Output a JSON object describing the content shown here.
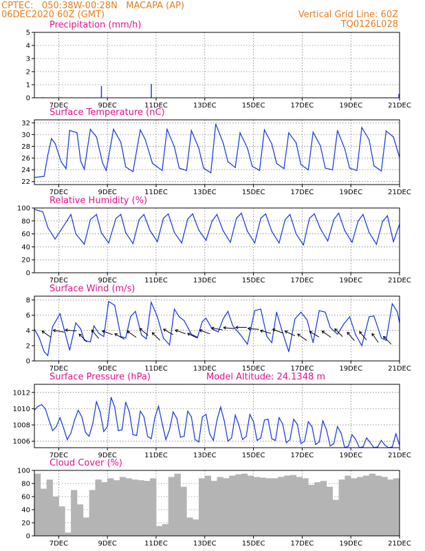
{
  "header": {
    "line1_left": "CPTEC:   050:38W-00:28N   MACAPA (AP)",
    "line2_left": "06DEC2020 60Z (GMT)",
    "line1_right": "Vertical Grid Line: 60Z",
    "line2_right": "TQ0126L028"
  },
  "colors": {
    "header": "#e87c1e",
    "title": "#e0128c",
    "line": "#1f3fe0",
    "bar": "#b4b4b4",
    "arrow": "#000000"
  },
  "x_axis": {
    "labels": [
      "7DEC",
      "9DEC",
      "11DEC",
      "13DEC",
      "15DEC",
      "17DEC",
      "19DEC",
      "21DEC"
    ],
    "x_values": [
      1,
      3,
      5,
      7,
      9,
      11,
      13,
      15
    ],
    "range": [
      0,
      15
    ]
  },
  "chart_data": [
    {
      "type": "bar",
      "title": "Precipitation (mm/h)",
      "ylim": [
        0,
        5
      ],
      "yticks": [
        0,
        1,
        2,
        3,
        4,
        5
      ],
      "x": [
        0.35,
        2.75,
        4.8,
        14.97
      ],
      "values": [
        0.05,
        0.9,
        1.05,
        0.3
      ]
    },
    {
      "type": "line",
      "title": "Surface Temperature (nC)",
      "ylim": [
        21.5,
        32.5
      ],
      "yticks": [
        22,
        24,
        26,
        28,
        30,
        32
      ],
      "x": [
        0,
        0.4,
        0.55,
        0.7,
        0.85,
        1.1,
        1.3,
        1.45,
        1.75,
        1.9,
        2.05,
        2.3,
        2.55,
        2.8,
        2.95,
        3.25,
        3.55,
        3.75,
        4.05,
        4.35,
        4.55,
        4.85,
        5.25,
        5.45,
        5.75,
        5.95,
        6.25,
        6.45,
        6.75,
        6.95,
        7.25,
        7.45,
        7.75,
        7.95,
        8.25,
        8.45,
        8.75,
        8.95,
        9.25,
        9.45,
        9.75,
        9.95,
        10.25,
        10.45,
        10.75,
        10.95,
        11.25,
        11.45,
        11.75,
        11.95,
        12.25,
        12.45,
        12.75,
        12.95,
        13.25,
        13.45,
        13.75,
        13.95,
        14.25,
        14.45,
        14.75,
        15
      ],
      "values": [
        22.7,
        22.9,
        26.5,
        29.3,
        28.5,
        25.4,
        24.2,
        30.7,
        30.3,
        25.5,
        24.1,
        30.9,
        29.6,
        25.2,
        23.9,
        30.9,
        28.7,
        24.5,
        23.7,
        30.8,
        29.2,
        25.1,
        23.9,
        30.9,
        27.9,
        24.3,
        23.9,
        30.7,
        27.7,
        24.3,
        23.5,
        31.8,
        28.6,
        25.4,
        24.4,
        30.3,
        27.7,
        24.6,
        23.9,
        30.8,
        28.4,
        25.1,
        24.2,
        30.3,
        28.6,
        24.9,
        24.0,
        30.4,
        28.1,
        24.3,
        24.0,
        30.7,
        27.6,
        24.3,
        23.9,
        31.2,
        29.1,
        24.7,
        23.8,
        30.6,
        29.6,
        26.1
      ]
    },
    {
      "type": "line",
      "title": "Relative Humidity (%)",
      "ylim": [
        0,
        100
      ],
      "yticks": [
        0,
        20,
        40,
        60,
        80,
        100
      ],
      "x": [
        0,
        0.35,
        0.55,
        0.85,
        1.3,
        1.5,
        1.7,
        2.05,
        2.3,
        2.55,
        2.75,
        3.05,
        3.35,
        3.55,
        3.75,
        4.05,
        4.3,
        4.5,
        4.75,
        5.05,
        5.3,
        5.5,
        5.75,
        6.05,
        6.3,
        6.5,
        6.75,
        7.05,
        7.3,
        7.5,
        7.75,
        8.05,
        8.3,
        8.5,
        8.75,
        9.05,
        9.3,
        9.5,
        9.75,
        10.05,
        10.3,
        10.5,
        10.75,
        11.05,
        11.3,
        11.5,
        11.75,
        12.05,
        12.3,
        12.5,
        12.75,
        13.05,
        13.3,
        13.5,
        13.75,
        14.05,
        14.3,
        14.5,
        14.75,
        15
      ],
      "values": [
        98,
        94,
        70,
        52,
        78,
        90,
        60,
        44,
        82,
        90,
        62,
        46,
        84,
        90,
        62,
        45,
        82,
        90,
        65,
        48,
        84,
        91,
        62,
        46,
        83,
        91,
        66,
        50,
        80,
        90,
        65,
        47,
        84,
        92,
        64,
        46,
        84,
        91,
        64,
        46,
        82,
        90,
        60,
        43,
        84,
        91,
        68,
        49,
        82,
        92,
        65,
        47,
        80,
        90,
        62,
        44,
        79,
        88,
        48,
        75
      ]
    },
    {
      "type": "line",
      "title": "Surface Wind (m/s)",
      "ylim": [
        0,
        8.5
      ],
      "yticks": [
        0,
        2,
        4,
        6,
        8
      ],
      "x": [
        0,
        0.2,
        0.4,
        0.55,
        0.75,
        1.05,
        1.3,
        1.45,
        1.7,
        1.9,
        2.05,
        2.3,
        2.45,
        2.65,
        2.85,
        3.05,
        3.3,
        3.55,
        3.75,
        3.95,
        4.15,
        4.4,
        4.6,
        4.8,
        5.05,
        5.3,
        5.55,
        5.75,
        5.95,
        6.15,
        6.45,
        6.7,
        6.9,
        7.05,
        7.3,
        7.55,
        7.75,
        7.95,
        8.15,
        8.45,
        8.75,
        9.05,
        9.3,
        9.55,
        9.75,
        9.95,
        10.15,
        10.45,
        10.7,
        10.95,
        11.2,
        11.45,
        11.7,
        11.95,
        12.15,
        12.45,
        12.7,
        12.95,
        13.2,
        13.45,
        13.75,
        13.95,
        14.25,
        14.45,
        14.7,
        14.9,
        15
      ],
      "values": [
        4.2,
        3.0,
        1.2,
        0.7,
        4.5,
        6.2,
        3.2,
        1.4,
        5.0,
        4.2,
        2.7,
        2.5,
        4.6,
        3.6,
        3.2,
        7.8,
        7.3,
        3.2,
        3.0,
        5.8,
        6.5,
        3.4,
        2.9,
        7.7,
        5.8,
        3.0,
        2.1,
        6.8,
        5.8,
        5.3,
        3.5,
        3.1,
        5.2,
        5.6,
        4.2,
        3.8,
        5.5,
        6.5,
        4.6,
        3.5,
        2.2,
        6.6,
        6.8,
        3.2,
        2.4,
        6.4,
        4.2,
        1.2,
        5.5,
        6.4,
        5.4,
        2.4,
        6.6,
        6.4,
        4.4,
        3.5,
        4.8,
        5.8,
        3.4,
        2.0,
        5.8,
        5.9,
        3.0,
        2.7,
        7.5,
        6.5,
        5.0
      ],
      "arrows_x": [
        0.5,
        1.0,
        1.5,
        2.0,
        2.5,
        3.0,
        3.5,
        4.0,
        4.5,
        5.0,
        5.5,
        6.0,
        6.5,
        7.0,
        7.5,
        8.0,
        8.5,
        9.0,
        9.5,
        10.0,
        10.5,
        11.0,
        11.5,
        12.0,
        12.5,
        13.0,
        13.5,
        14.0,
        14.5
      ],
      "arrows_y": [
        3.5,
        3.9,
        4.0,
        3.0,
        3.5,
        3.7,
        3.2,
        3.5,
        3.8,
        3.2,
        3.8,
        3.8,
        3.3,
        3.8,
        4.2,
        4.3,
        4.4,
        4.2,
        3.8,
        3.9,
        3.6,
        3.1,
        3.5,
        3.5,
        3.7,
        3.2,
        3.3,
        3.0,
        2.7
      ],
      "arrows_angle": [
        215,
        190,
        185,
        225,
        230,
        200,
        210,
        215,
        220,
        225,
        210,
        200,
        205,
        200,
        190,
        185,
        180,
        185,
        195,
        200,
        205,
        215,
        210,
        215,
        225,
        230,
        230,
        235,
        225
      ]
    },
    {
      "type": "line",
      "title": "Surface Pressure (hPa)",
      "subtitle": "Model Altitude: 24.1348 m",
      "ylim": [
        1005.2,
        1013
      ],
      "yticks": [
        1006,
        1008,
        1010,
        1012
      ],
      "x": [
        0,
        0.15,
        0.3,
        0.45,
        0.6,
        0.75,
        0.9,
        1.05,
        1.2,
        1.35,
        1.5,
        1.65,
        1.8,
        1.95,
        2.1,
        2.25,
        2.4,
        2.55,
        2.7,
        2.85,
        3.0,
        3.15,
        3.3,
        3.45,
        3.6,
        3.75,
        3.9,
        4.05,
        4.2,
        4.35,
        4.5,
        4.65,
        4.8,
        4.95,
        5.1,
        5.25,
        5.4,
        5.55,
        5.7,
        5.85,
        6.0,
        6.15,
        6.3,
        6.45,
        6.6,
        6.75,
        6.9,
        7.05,
        7.2,
        7.35,
        7.5,
        7.65,
        7.8,
        7.95,
        8.1,
        8.25,
        8.4,
        8.55,
        8.7,
        8.85,
        9.0,
        9.15,
        9.3,
        9.45,
        9.6,
        9.75,
        9.9,
        10.05,
        10.2,
        10.35,
        10.5,
        10.65,
        10.8,
        10.95,
        11.1,
        11.25,
        11.4,
        11.55,
        11.7,
        11.85,
        12.0,
        12.15,
        12.3,
        12.45,
        12.6,
        12.75,
        12.9,
        13.05,
        13.2,
        13.35,
        13.5,
        13.65,
        13.8,
        13.95,
        14.1,
        14.25,
        14.4,
        14.55,
        14.7,
        14.85,
        15
      ],
      "values": [
        1009.8,
        1010.3,
        1010.5,
        1010.0,
        1008.6,
        1007.3,
        1007.8,
        1008.9,
        1007.6,
        1006.2,
        1007.0,
        1008.6,
        1009.8,
        1009.0,
        1007.1,
        1006.6,
        1008.2,
        1010.9,
        1009.6,
        1007.2,
        1007.8,
        1011.4,
        1010.2,
        1007.3,
        1007.4,
        1010.8,
        1009.6,
        1006.8,
        1006.7,
        1009.7,
        1009.0,
        1006.6,
        1006.3,
        1008.9,
        1010.3,
        1008.2,
        1006.2,
        1007.4,
        1009.6,
        1008.8,
        1006.5,
        1006.6,
        1009.7,
        1009.0,
        1006.2,
        1005.9,
        1009.0,
        1009.3,
        1006.9,
        1006.1,
        1008.6,
        1010.2,
        1008.5,
        1006.0,
        1006.4,
        1009.2,
        1008.0,
        1006.2,
        1006.6,
        1009.3,
        1008.4,
        1006.1,
        1006.4,
        1008.6,
        1008.7,
        1006.3,
        1006.1,
        1008.9,
        1008.1,
        1005.8,
        1006.2,
        1008.7,
        1008.1,
        1005.7,
        1006.0,
        1008.4,
        1007.8,
        1005.6,
        1005.9,
        1008.5,
        1007.4,
        1005.4,
        1005.7,
        1007.8,
        1007.0,
        1005.2,
        1005.4,
        1006.8,
        1006.2,
        1005.2,
        1005.3,
        1006.4,
        1005.8,
        1005.2,
        1005.3,
        1006.1,
        1005.5,
        1005.2,
        1005.3,
        1006.9,
        1005.5
      ]
    },
    {
      "type": "bar",
      "title": "Cloud Cover (%)",
      "ylim": [
        0,
        100
      ],
      "yticks": [
        0,
        20,
        40,
        60,
        80,
        100
      ],
      "x": [
        0.0,
        0.25,
        0.5,
        0.75,
        1.0,
        1.25,
        1.5,
        1.75,
        2.0,
        2.25,
        2.5,
        2.75,
        3.0,
        3.25,
        3.5,
        3.75,
        4.0,
        4.25,
        4.5,
        4.75,
        5.0,
        5.25,
        5.5,
        5.75,
        6.0,
        6.25,
        6.5,
        6.75,
        7.0,
        7.25,
        7.5,
        7.75,
        8.0,
        8.25,
        8.5,
        8.75,
        9.0,
        9.25,
        9.5,
        9.75,
        10.0,
        10.25,
        10.5,
        10.75,
        11.0,
        11.25,
        11.5,
        11.75,
        12.0,
        12.25,
        12.5,
        12.75,
        13.0,
        13.25,
        13.5,
        13.75,
        14.0,
        14.25,
        14.5,
        14.75
      ],
      "values": [
        95,
        72,
        86,
        60,
        45,
        5,
        70,
        48,
        28,
        70,
        86,
        82,
        88,
        85,
        90,
        88,
        86,
        85,
        84,
        88,
        15,
        18,
        90,
        95,
        75,
        28,
        25,
        88,
        92,
        84,
        90,
        88,
        92,
        94,
        95,
        92,
        90,
        89,
        88,
        88,
        90,
        92,
        93,
        90,
        88,
        78,
        82,
        84,
        75,
        55,
        86,
        92,
        88,
        90,
        92,
        95,
        92,
        90,
        86,
        88
      ]
    }
  ]
}
